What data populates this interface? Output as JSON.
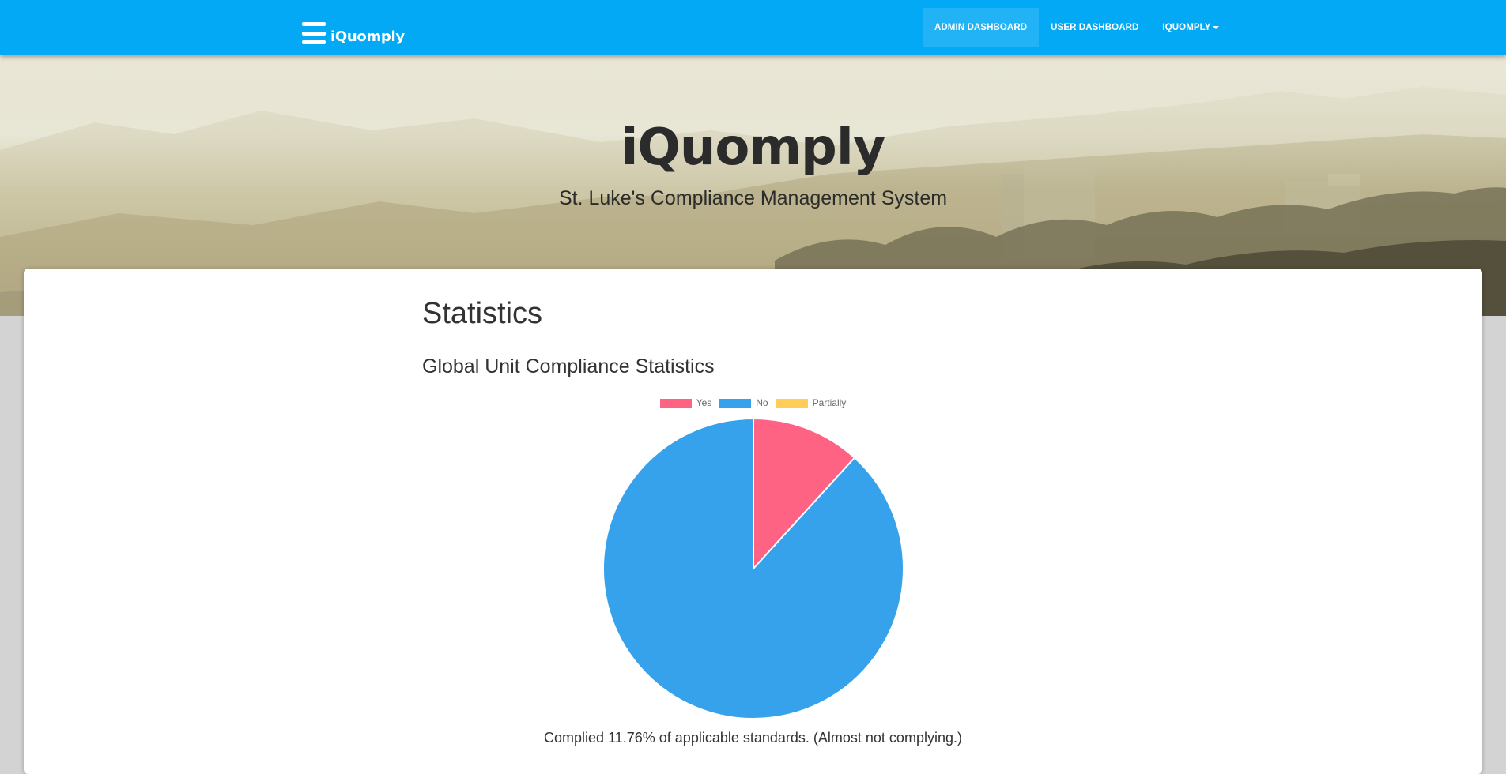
{
  "navbar": {
    "brand": "iQuomply",
    "links": [
      {
        "label": "ADMIN DASHBOARD",
        "active": true
      },
      {
        "label": "USER DASHBOARD",
        "active": false
      },
      {
        "label": "IQUOMPLY",
        "dropdown": true
      }
    ],
    "color": "#03a9f4"
  },
  "hero": {
    "title": "iQuomply",
    "subtitle": "St. Luke's Compliance Management System"
  },
  "main": {
    "page_title": "Statistics",
    "section_title": "Global Unit Compliance Statistics",
    "summary": "Complied 11.76% of applicable standards. (Almost not complying.)"
  },
  "chart_data": {
    "type": "pie",
    "title": "",
    "legend_position": "top",
    "labels": [
      "Yes",
      "No",
      "Partially"
    ],
    "values": [
      11.76,
      88.24,
      0
    ],
    "colors": [
      "#ff6384",
      "#36a2eb",
      "#ffce56"
    ]
  }
}
